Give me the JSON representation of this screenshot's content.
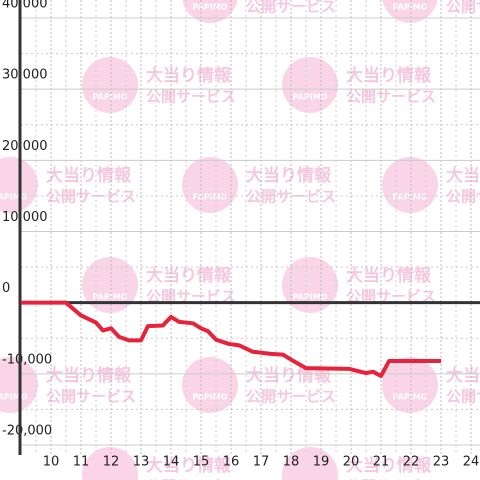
{
  "chart_data": {
    "type": "line",
    "x": [
      9,
      10.5,
      11,
      11.5,
      11.73,
      12,
      12.27,
      12.6,
      13,
      13.23,
      13.73,
      14,
      14.27,
      14.73,
      15,
      15.23,
      15.5,
      15.93,
      16.27,
      16.73,
      17.33,
      17.73,
      18,
      18.5,
      19.93,
      20.5,
      20.73,
      21,
      21.27,
      23
    ],
    "series": [
      {
        "color": "#e8223a",
        "values": [
          0,
          0,
          -1800,
          -2800,
          -3900,
          -3600,
          -4800,
          -5300,
          -5300,
          -3300,
          -3200,
          -2000,
          -2700,
          -2900,
          -3600,
          -4000,
          -5200,
          -5800,
          -6000,
          -6900,
          -7200,
          -7300,
          -8000,
          -9200,
          -9300,
          -9900,
          -9700,
          -10300,
          -8200,
          -8200
        ]
      }
    ],
    "xlim": [
      9,
      24.3
    ],
    "xticks": [
      10,
      11,
      12,
      13,
      14,
      15,
      16,
      17,
      18,
      19,
      20,
      21,
      22,
      23,
      24
    ],
    "ylim": [
      -20000,
      40000
    ],
    "yticks": [
      {
        "value": -20000,
        "label": "-20,000"
      },
      {
        "value": -10000,
        "label": "-10,000"
      },
      0,
      {
        "value": 10000,
        "label": "10,000"
      },
      {
        "value": 20000,
        "label": "20,000"
      },
      {
        "value": 30000,
        "label": "30,000"
      },
      {
        "value": 40000,
        "label": "40,000"
      }
    ],
    "grid": true,
    "watermark": {
      "brand": "PAPIMO",
      "line1": "大当り情報",
      "line2": "公開サービス"
    }
  }
}
